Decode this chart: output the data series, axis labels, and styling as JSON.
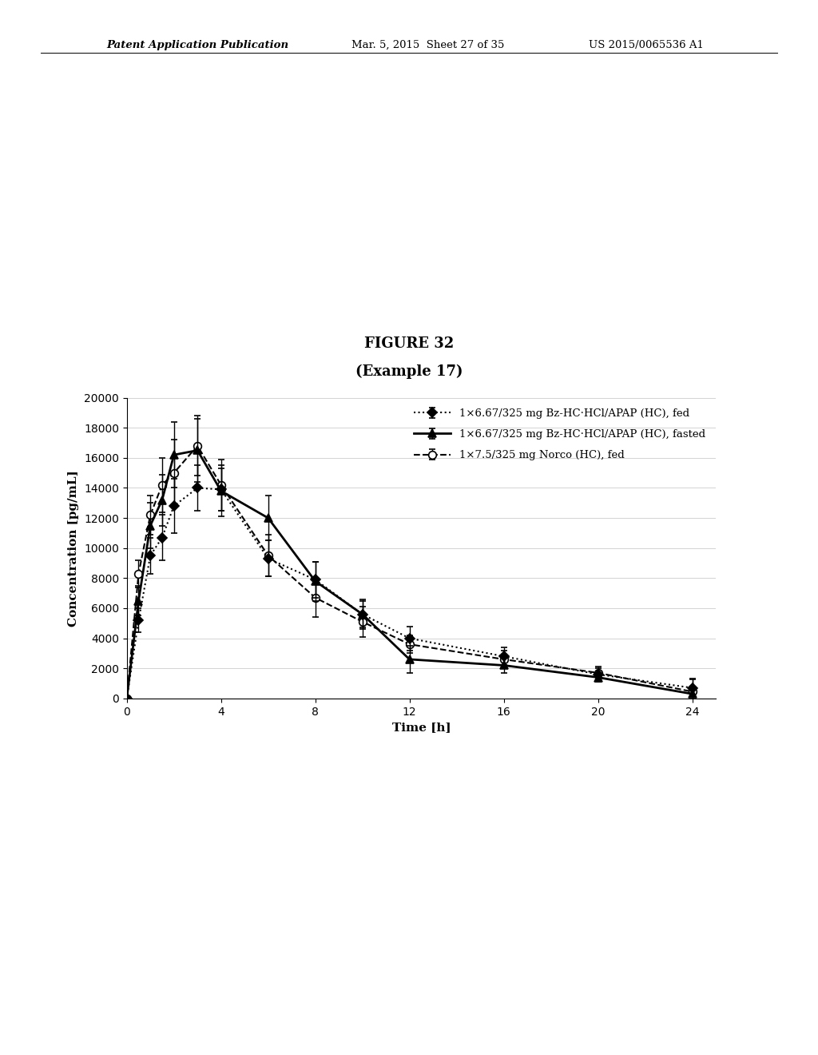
{
  "title": "FIGURE 32",
  "subtitle": "(Example 17)",
  "xlabel": "Time [h]",
  "ylabel": "Concentration [pg/mL]",
  "xlim": [
    0,
    25
  ],
  "ylim": [
    0,
    20000
  ],
  "xticks": [
    0,
    4,
    8,
    12,
    16,
    20,
    24
  ],
  "yticks": [
    0,
    2000,
    4000,
    6000,
    8000,
    10000,
    12000,
    14000,
    16000,
    18000,
    20000
  ],
  "series": [
    {
      "label": "1×6.67/325 mg Bz-HC·HCl/APAP (HC), fed",
      "x": [
        0,
        0.5,
        1,
        1.5,
        2,
        3,
        4,
        6,
        8,
        10,
        12,
        16,
        20,
        24
      ],
      "y": [
        0,
        5200,
        9500,
        10700,
        12800,
        14000,
        13900,
        9300,
        7900,
        5600,
        4000,
        2800,
        1600,
        700
      ],
      "yerr": [
        0,
        800,
        1200,
        1500,
        1800,
        1500,
        1400,
        1200,
        1200,
        900,
        800,
        600,
        400,
        600
      ],
      "color": "black",
      "linestyle": ":",
      "linewidth": 1.5,
      "marker": "D",
      "markersize": 6,
      "markerfacecolor": "black",
      "markeredgecolor": "black",
      "zorder": 3
    },
    {
      "label": "1×6.67/325 mg Bz-HC·HCl/APAP (HC), fasted",
      "x": [
        0,
        0.5,
        1,
        1.5,
        2,
        3,
        4,
        6,
        8,
        10,
        12,
        16,
        20,
        24
      ],
      "y": [
        0,
        6500,
        11500,
        13200,
        16200,
        16500,
        13800,
        12000,
        7800,
        5600,
        2600,
        2200,
        1400,
        300
      ],
      "yerr": [
        0,
        1000,
        1500,
        1700,
        2200,
        2100,
        1700,
        1500,
        1300,
        1000,
        900,
        500,
        300,
        500
      ],
      "color": "black",
      "linestyle": "-",
      "linewidth": 2.0,
      "marker": "^",
      "markersize": 7,
      "markerfacecolor": "black",
      "markeredgecolor": "black",
      "zorder": 4
    },
    {
      "label": "1×7.5/325 mg Norco (HC), fed",
      "x": [
        0,
        0.5,
        1,
        1.5,
        2,
        3,
        4,
        6,
        8,
        10,
        12,
        16,
        20,
        24
      ],
      "y": [
        0,
        8300,
        12200,
        14200,
        15000,
        16800,
        14200,
        9500,
        6700,
        5100,
        3600,
        2600,
        1700,
        450
      ],
      "yerr": [
        0,
        900,
        1300,
        1800,
        2200,
        2000,
        1700,
        1400,
        1300,
        1000,
        600,
        600,
        400,
        800
      ],
      "color": "black",
      "linestyle": "--",
      "linewidth": 1.5,
      "marker": "o",
      "markersize": 7,
      "markerfacecolor": "white",
      "markeredgecolor": "black",
      "zorder": 2
    }
  ],
  "header_left": "Patent Application Publication",
  "header_mid": "Mar. 5, 2015  Sheet 27 of 35",
  "header_right": "US 2015/0065536 A1",
  "bg_color": "white",
  "text_color": "black",
  "title_fontsize": 13,
  "label_fontsize": 11,
  "tick_fontsize": 10,
  "legend_fontsize": 9.5
}
